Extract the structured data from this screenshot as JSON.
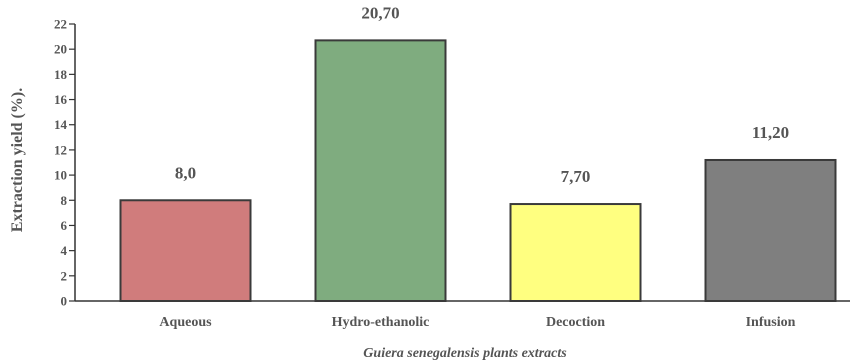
{
  "chart_data": {
    "type": "bar",
    "categories": [
      "Aqueous",
      "Hydro-ethanolic",
      "Decoction",
      "Infusion"
    ],
    "values": [
      8.0,
      20.7,
      7.7,
      11.2
    ],
    "value_labels": [
      "8,0",
      "20,70",
      "7,70",
      "11,20"
    ],
    "bar_colors": [
      "#d07c7c",
      "#7fac7f",
      "#ffff80",
      "#7f7f7f"
    ],
    "title": "",
    "xlabel": "Guiera senegalensis plants extracts",
    "ylabel": "Extraction yield (%).",
    "ylim": [
      0,
      22
    ],
    "yticks": [
      0,
      2,
      4,
      6,
      8,
      10,
      12,
      14,
      16,
      18,
      20,
      22
    ],
    "grid": false
  }
}
